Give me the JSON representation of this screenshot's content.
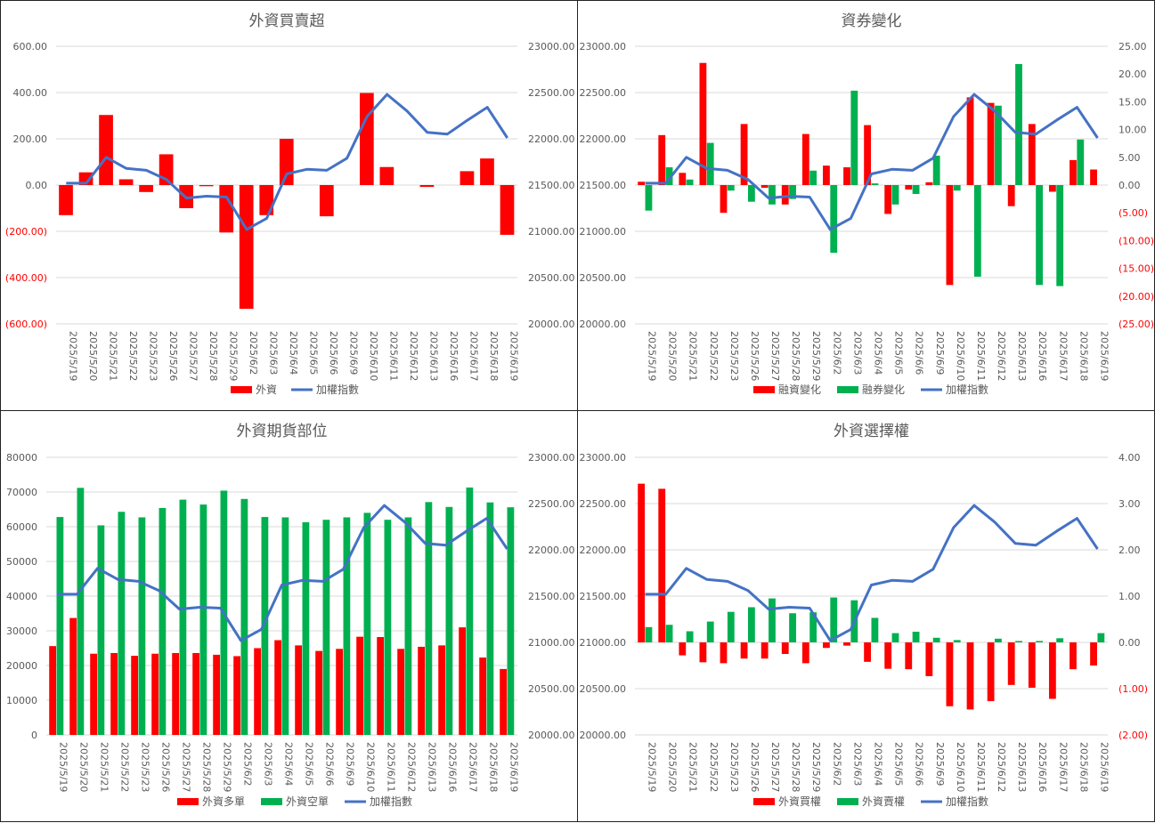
{
  "colors": {
    "red": "#ff0000",
    "green": "#00b050",
    "blue": "#4472c4",
    "grid": "#d9d9d9",
    "neg": "#ff0000"
  },
  "chart_data": [
    {
      "type": "bar",
      "title": "外資買賣超",
      "categories": [
        "2025/5/19",
        "2025/5/20",
        "2025/5/21",
        "2025/5/22",
        "2025/5/23",
        "2025/5/26",
        "2025/5/27",
        "2025/5/28",
        "2025/5/29",
        "2025/6/2",
        "2025/6/3",
        "2025/6/4",
        "2025/6/5",
        "2025/6/6",
        "2025/6/9",
        "2025/6/10",
        "2025/6/11",
        "2025/6/12",
        "2025/6/13",
        "2025/6/16",
        "2025/6/17",
        "2025/6/18",
        "2025/6/19"
      ],
      "y_ticks": [
        "600.00",
        "400.00",
        "200.00",
        "0.00",
        "(200.00)",
        "(400.00)",
        "(600.00)"
      ],
      "y2_ticks": [
        "23000.00",
        "22500.00",
        "22000.00",
        "21500.00",
        "21000.00",
        "20500.00",
        "20000.00"
      ],
      "ylim": [
        -600,
        600
      ],
      "y2lim": [
        20000,
        23000
      ],
      "series": [
        {
          "name": "外資",
          "values": [
            -130,
            55,
            303,
            25,
            -30,
            133,
            -100,
            -5,
            -205,
            -535,
            -130,
            200,
            0,
            -135,
            0,
            398,
            78,
            0,
            -8,
            0,
            60,
            115,
            -215
          ]
        }
      ],
      "line": {
        "name": "加權指數",
        "values": [
          21520,
          21520,
          21800,
          21680,
          21660,
          21560,
          21360,
          21380,
          21370,
          21020,
          21140,
          21620,
          21670,
          21660,
          21790,
          22240,
          22480,
          22300,
          22070,
          22050,
          22200,
          22340,
          22010
        ]
      }
    },
    {
      "type": "bar",
      "title": "資券變化",
      "categories": [
        "2025/5/19",
        "2025/5/20",
        "2025/5/21",
        "2025/5/22",
        "2025/5/23",
        "2025/5/26",
        "2025/5/27",
        "2025/5/28",
        "2025/5/29",
        "2025/6/2",
        "2025/6/3",
        "2025/6/4",
        "2025/6/5",
        "2025/6/6",
        "2025/6/9",
        "2025/6/10",
        "2025/6/11",
        "2025/6/12",
        "2025/6/13",
        "2025/6/16",
        "2025/6/17",
        "2025/6/18",
        "2025/6/19"
      ],
      "y_ticks": [
        "23000.00",
        "22500.00",
        "22000.00",
        "21500.00",
        "21000.00",
        "20500.00",
        "20000.00"
      ],
      "y2_ticks": [
        "25.00",
        "20.00",
        "15.00",
        "10.00",
        "5.00",
        "0.00",
        "(5.00)",
        "(10.00)",
        "(15.00)",
        "(20.00)",
        "(25.00)"
      ],
      "ylim": [
        20000,
        23000
      ],
      "y2lim": [
        -25,
        25
      ],
      "series": [
        {
          "name": "融資變化",
          "values": [
            0.6,
            9.0,
            2.2,
            22.0,
            -5.0,
            11.0,
            -0.5,
            -3.5,
            9.2,
            3.5,
            3.2,
            10.8,
            -5.2,
            -0.8,
            0.5,
            -18.0,
            15.8,
            14.8,
            -3.8,
            11.0,
            -1.2,
            4.5,
            2.8
          ]
        },
        {
          "name": "融券變化",
          "values": [
            -4.6,
            3.2,
            1.0,
            7.6,
            -1.0,
            -3.0,
            -3.5,
            -2.5,
            2.6,
            -12.2,
            17.0,
            0.3,
            -3.5,
            -1.6,
            5.3,
            -1.0,
            -16.5,
            14.3,
            21.8,
            -18.0,
            -18.2,
            8.2,
            0.0
          ]
        }
      ],
      "line": {
        "name": "加權指數",
        "values": [
          21520,
          21520,
          21800,
          21680,
          21660,
          21560,
          21360,
          21380,
          21370,
          21020,
          21140,
          21620,
          21670,
          21660,
          21790,
          22240,
          22480,
          22300,
          22070,
          22050,
          22200,
          22340,
          22010
        ]
      }
    },
    {
      "type": "bar",
      "title": "外資期貨部位",
      "categories": [
        "2025/5/19",
        "2025/5/20",
        "2025/5/21",
        "2025/5/22",
        "2025/5/23",
        "2025/5/26",
        "2025/5/27",
        "2025/5/28",
        "2025/5/29",
        "2025/6/2",
        "2025/6/3",
        "2025/6/4",
        "2025/6/5",
        "2025/6/6",
        "2025/6/9",
        "2025/6/10",
        "2025/6/11",
        "2025/6/12",
        "2025/6/13",
        "2025/6/16",
        "2025/6/17",
        "2025/6/18",
        "2025/6/19"
      ],
      "y_ticks": [
        "80000",
        "70000",
        "60000",
        "50000",
        "40000",
        "30000",
        "20000",
        "10000",
        "0"
      ],
      "y2_ticks": [
        "23000.00",
        "22500.00",
        "22000.00",
        "21500.00",
        "21000.00",
        "20500.00",
        "20000.00"
      ],
      "ylim": [
        0,
        80000
      ],
      "y2lim": [
        20000,
        23000
      ],
      "series": [
        {
          "name": "外資多單",
          "values": [
            25600,
            33700,
            23400,
            23600,
            22800,
            23400,
            23600,
            23600,
            23100,
            22700,
            25000,
            27300,
            25800,
            24200,
            24800,
            28300,
            28200,
            24800,
            25400,
            25800,
            31000,
            22300,
            19000
          ]
        },
        {
          "name": "外資空單",
          "values": [
            62800,
            71200,
            60400,
            64300,
            62700,
            65400,
            67800,
            66400,
            70400,
            68000,
            62800,
            62700,
            61300,
            62000,
            62700,
            64000,
            62000,
            62700,
            67100,
            65700,
            71300,
            67000,
            65600
          ]
        }
      ],
      "line": {
        "name": "加權指數",
        "values": [
          21520,
          21520,
          21800,
          21680,
          21660,
          21560,
          21360,
          21380,
          21370,
          21020,
          21140,
          21620,
          21670,
          21660,
          21790,
          22240,
          22480,
          22300,
          22070,
          22050,
          22200,
          22340,
          22010
        ]
      }
    },
    {
      "type": "bar",
      "title": "外資選擇權",
      "categories": [
        "2025/5/19",
        "2025/5/20",
        "2025/5/21",
        "2025/5/22",
        "2025/5/23",
        "2025/5/26",
        "2025/5/27",
        "2025/5/28",
        "2025/5/29",
        "2025/6/2",
        "2025/6/3",
        "2025/6/4",
        "2025/6/5",
        "2025/6/6",
        "2025/6/9",
        "2025/6/10",
        "2025/6/11",
        "2025/6/12",
        "2025/6/13",
        "2025/6/16",
        "2025/6/17",
        "2025/6/18",
        "2025/6/19"
      ],
      "y_ticks": [
        "23000.00",
        "22500.00",
        "22000.00",
        "21500.00",
        "21000.00",
        "20500.00",
        "20000.00"
      ],
      "y2_ticks": [
        "4.00",
        "3.00",
        "2.00",
        "1.00",
        "0.00",
        "(1.00)",
        "(2.00)"
      ],
      "ylim": [
        20000,
        23000
      ],
      "y2lim": [
        -2,
        4
      ],
      "series": [
        {
          "name": "外資買權",
          "values": [
            3.43,
            3.32,
            -0.28,
            -0.43,
            -0.45,
            -0.35,
            -0.35,
            -0.25,
            -0.45,
            -0.12,
            -0.07,
            -0.42,
            -0.57,
            -0.58,
            -0.73,
            -1.38,
            -1.45,
            -1.27,
            -0.92,
            -0.98,
            -1.22,
            -0.58,
            -0.5
          ]
        },
        {
          "name": "外資賣權",
          "values": [
            0.33,
            0.38,
            0.24,
            0.45,
            0.66,
            0.76,
            0.95,
            0.63,
            0.65,
            0.97,
            0.91,
            0.53,
            0.2,
            0.23,
            0.1,
            0.05,
            0.0,
            0.08,
            0.03,
            0.03,
            0.09,
            0.0,
            0.2
          ]
        }
      ],
      "line": {
        "name": "加權指數",
        "values": [
          21520,
          21520,
          21800,
          21680,
          21660,
          21560,
          21360,
          21380,
          21370,
          21020,
          21140,
          21620,
          21670,
          21660,
          21790,
          22240,
          22480,
          22300,
          22070,
          22050,
          22200,
          22340,
          22010
        ]
      }
    }
  ]
}
